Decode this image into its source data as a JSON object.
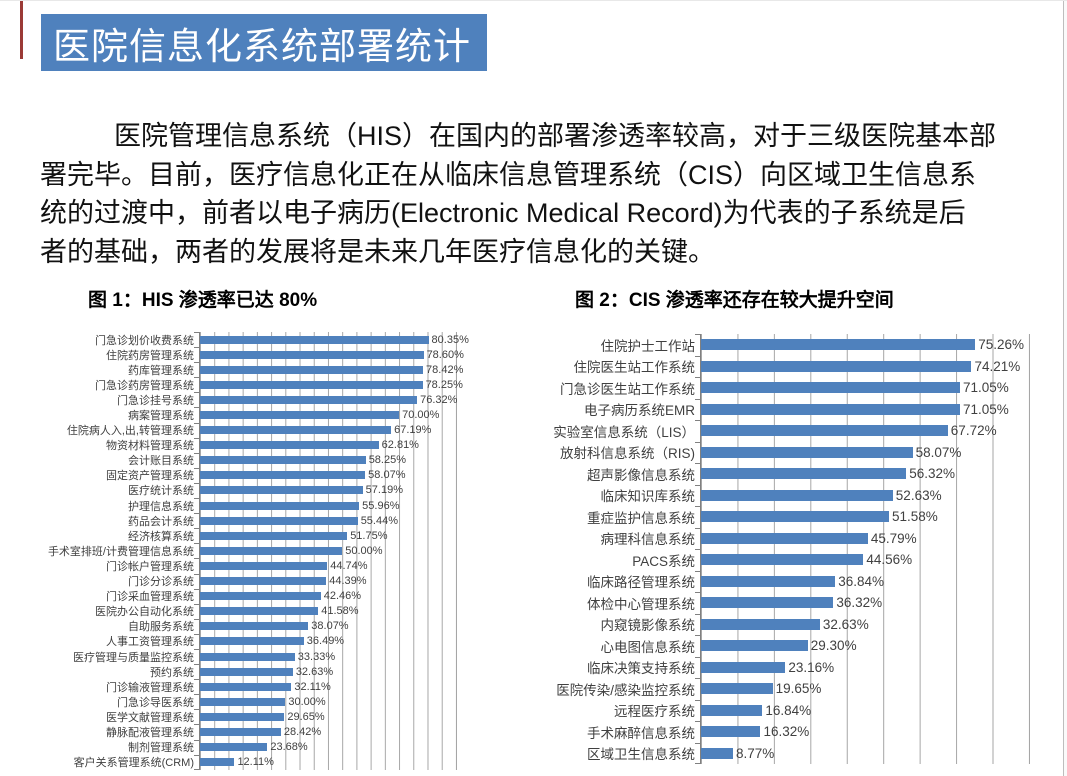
{
  "header": {
    "title": "医院信息化系统部署统计"
  },
  "paragraph": {
    "lines": [
      "医院管理信息系统（HIS）在国内的部署渗透率较高，对于三级医院基本部",
      "署完毕。目前，医疗信息化正在从临床信息管理系统（CIS）向区域卫生信息系",
      "统的过渡中，前者以电子病历(Electronic Medical Record)为代表的子系统是后",
      "者的基础，两者的发展将是未来几年医疗信息化的关键。"
    ]
  },
  "theme": {
    "accent": "#4f81bd",
    "banner_text": "#ffffff",
    "bar_color": "#4f81bd",
    "red_stripe": "#9b3a36",
    "grid_line": "#a6a6a6",
    "axis_line": "#808080",
    "text": "#111111",
    "label_text": "#404040"
  },
  "chart_data": [
    {
      "type": "bar",
      "orientation": "horizontal",
      "title": "图 1：HIS 渗透率已达 80%",
      "xlim": [
        0,
        90
      ],
      "grid_divisions": 18,
      "grid": true,
      "legend": "none",
      "value_labels": "end-of-bar",
      "categories": [
        "门急诊划价收费系统",
        "住院药房管理系统",
        "药库管理系统",
        "门急诊药房管理系统",
        "门急诊挂号系统",
        "病案管理系统",
        "住院病人入,出,转管理系统",
        "物资材料管理系统",
        "会计账目系统",
        "固定资产管理系统",
        "医疗统计系统",
        "护理信息系统",
        "药品会计系统",
        "经济核算系统",
        "手术室排班/计费管理信息系统",
        "门诊帐户管理系统",
        "门诊分诊系统",
        "门诊采血管理系统",
        "医院办公自动化系统",
        "自助服务系统",
        "人事工资管理系统",
        "医疗管理与质量监控系统",
        "预约系统",
        "门诊输液管理系统",
        "门急诊导医系统",
        "医学文献管理系统",
        "静脉配液管理系统",
        "制剂管理系统",
        "客户关系管理系统(CRM)"
      ],
      "values": [
        80.35,
        78.6,
        78.42,
        78.25,
        76.32,
        70.0,
        67.19,
        62.81,
        58.25,
        58.07,
        57.19,
        55.96,
        55.44,
        51.75,
        50.0,
        44.74,
        44.39,
        42.46,
        41.58,
        38.07,
        36.49,
        33.33,
        32.63,
        32.11,
        30.0,
        29.65,
        28.42,
        23.68,
        12.11
      ]
    },
    {
      "type": "bar",
      "orientation": "horizontal",
      "title": "图 2：CIS 渗透率还存在较大提升空间",
      "xlim": [
        0,
        90
      ],
      "grid_divisions": 9,
      "grid": true,
      "legend": "none",
      "value_labels": "end-of-bar",
      "categories": [
        "住院护士工作站",
        "住院医生站工作系统",
        "门急诊医生站工作系统",
        "电子病历系统EMR",
        "实验室信息系统（LIS）",
        "放射科信息系统（RIS)",
        "超声影像信息系统",
        "临床知识库系统",
        "重症监护信息系统",
        "病理科信息系统",
        "PACS系统",
        "临床路径管理系统",
        "体检中心管理系统",
        "内窥镜影像系统",
        "心电图信息系统",
        "临床决策支持系统",
        "医院传染/感染监控系统",
        "远程医疗系统",
        "手术麻醉信息系统",
        "区域卫生信息系统"
      ],
      "values": [
        75.26,
        74.21,
        71.05,
        71.05,
        67.72,
        58.07,
        56.32,
        52.63,
        51.58,
        45.79,
        44.56,
        36.84,
        36.32,
        32.63,
        29.3,
        23.16,
        19.65,
        16.84,
        16.32,
        8.77
      ]
    }
  ]
}
